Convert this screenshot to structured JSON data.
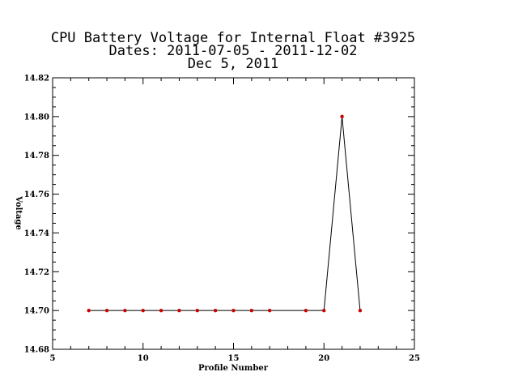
{
  "chart_data": {
    "type": "line",
    "title": [
      "CPU Battery Voltage for Internal Float #3925",
      "Dates:  2011-07-05 -  2011-12-02",
      "Dec  5, 2011"
    ],
    "xlabel": "Profile Number",
    "ylabel": "Voltage",
    "xlim": [
      5,
      25
    ],
    "ylim": [
      14.68,
      14.82
    ],
    "xticks": [
      "5",
      "10",
      "15",
      "20",
      "25"
    ],
    "yticks": [
      "14.68",
      "14.70",
      "14.72",
      "14.74",
      "14.76",
      "14.78",
      "14.80",
      "14.82"
    ],
    "grid": false,
    "series": [
      {
        "x": [
          7,
          8,
          9,
          10,
          11,
          12,
          13,
          14,
          15,
          16,
          17,
          19,
          20,
          21,
          22
        ],
        "values": [
          14.7,
          14.7,
          14.7,
          14.7,
          14.7,
          14.7,
          14.7,
          14.7,
          14.7,
          14.7,
          14.7,
          14.7,
          14.7,
          14.8,
          14.7
        ],
        "line_color": "#000000",
        "marker_color": "#cc0000"
      }
    ]
  }
}
